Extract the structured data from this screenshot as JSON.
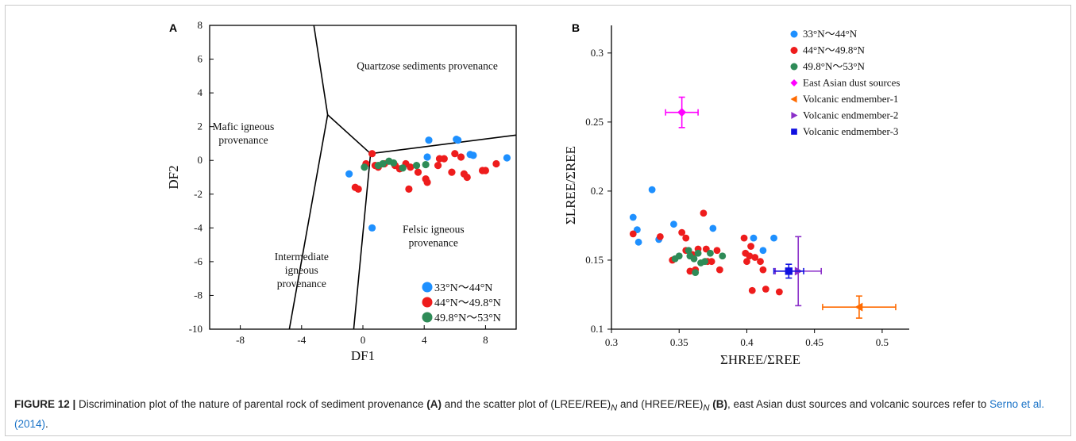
{
  "colors": {
    "blue": "#1e90ff",
    "red": "#ee1c1c",
    "green": "#2e8b57",
    "magenta": "#ff00ff",
    "orange": "#ff6a00",
    "purple": "#8b2fc9",
    "navy": "#1010e0"
  },
  "caption": {
    "label": "FIGURE 12 |",
    "part1": " Discrimination plot of the nature of parental rock of sediment provenance ",
    "a": "(A)",
    "part2": " and the scatter plot of (LREE/REE)",
    "sub1": "N",
    "part3": " and (HREE/REE)",
    "sub2": "N",
    "b": " (B)",
    "part4": ", east Asian dust sources and volcanic sources refer to ",
    "ref": "Serno et al. (2014)",
    "end": "."
  },
  "chart_data": [
    {
      "panel": "A",
      "type": "scatter",
      "xlabel": "DF1",
      "ylabel": "DF2",
      "xlim": [
        -10,
        10
      ],
      "ylim": [
        -10,
        8
      ],
      "xticks": [
        -8,
        -4,
        0,
        4,
        8
      ],
      "yticks": [
        -10,
        -8,
        -6,
        -4,
        -2,
        0,
        2,
        4,
        6,
        8
      ],
      "grid": false,
      "legend_position": "bottom-right",
      "regions": [
        {
          "name": "quartzose",
          "lines": [
            "Quartzose sediments provenance"
          ],
          "x": 4.2,
          "y": 5.4
        },
        {
          "name": "mafic",
          "lines": [
            "Mafic igneous",
            "provenance"
          ],
          "x": -7.8,
          "y": 1.8
        },
        {
          "name": "felsic",
          "lines": [
            "Felsic igneous",
            "provenance"
          ],
          "x": 4.6,
          "y": -4.3
        },
        {
          "name": "intermediate",
          "lines": [
            "Intermediate",
            "igneous",
            "provenance"
          ],
          "x": -4.0,
          "y": -5.9
        }
      ],
      "boundaries": [
        [
          [
            -3.2,
            8
          ],
          [
            -2.3,
            2.7
          ],
          [
            0.5,
            0.4
          ]
        ],
        [
          [
            -2.3,
            2.7
          ],
          [
            -4.8,
            -10
          ]
        ],
        [
          [
            0.5,
            0.4
          ],
          [
            -0.6,
            -10
          ]
        ],
        [
          [
            0.5,
            0.4
          ],
          [
            10,
            1.5
          ]
        ]
      ],
      "series": [
        {
          "name": "33°N～44°N",
          "color": "blue",
          "points": [
            [
              -0.9,
              -0.8
            ],
            [
              0.6,
              -4.0
            ],
            [
              4.2,
              0.2
            ],
            [
              4.3,
              1.2
            ],
            [
              6.1,
              1.25
            ],
            [
              6.2,
              1.2
            ],
            [
              7.0,
              0.35
            ],
            [
              7.2,
              0.3
            ],
            [
              9.4,
              0.15
            ]
          ]
        },
        {
          "name": "44°N～49.8°N",
          "color": "red",
          "points": [
            [
              -0.5,
              -1.6
            ],
            [
              -0.3,
              -1.7
            ],
            [
              0.2,
              -0.2
            ],
            [
              0.6,
              0.4
            ],
            [
              0.8,
              -0.3
            ],
            [
              1.0,
              -0.4
            ],
            [
              1.4,
              -0.2
            ],
            [
              2.1,
              -0.3
            ],
            [
              2.4,
              -0.5
            ],
            [
              2.8,
              -0.2
            ],
            [
              3.0,
              -1.7
            ],
            [
              3.1,
              -0.4
            ],
            [
              3.6,
              -0.7
            ],
            [
              4.1,
              -1.1
            ],
            [
              4.2,
              -1.3
            ],
            [
              4.9,
              -0.3
            ],
            [
              5.0,
              0.1
            ],
            [
              5.3,
              0.1
            ],
            [
              5.8,
              -0.7
            ],
            [
              6.0,
              0.4
            ],
            [
              6.4,
              0.2
            ],
            [
              6.6,
              -0.8
            ],
            [
              6.8,
              -1.0
            ],
            [
              7.8,
              -0.6
            ],
            [
              8.0,
              -0.6
            ],
            [
              8.7,
              -0.2
            ]
          ]
        },
        {
          "name": "49.8°N～53°N",
          "color": "green",
          "points": [
            [
              0.1,
              -0.4
            ],
            [
              1.0,
              -0.3
            ],
            [
              1.3,
              -0.2
            ],
            [
              1.7,
              -0.05
            ],
            [
              2.0,
              -0.15
            ],
            [
              2.6,
              -0.45
            ],
            [
              3.5,
              -0.3
            ],
            [
              4.1,
              -0.25
            ]
          ]
        }
      ]
    },
    {
      "panel": "B",
      "type": "scatter",
      "xlabel": "ΣHREE/ΣREE",
      "ylabel": "ΣLREE/ΣREE",
      "xlim": [
        0.3,
        0.52
      ],
      "ylim": [
        0.1,
        0.32
      ],
      "xticks": [
        0.3,
        0.35,
        0.4,
        0.45,
        0.5
      ],
      "yticks": [
        0.1,
        0.15,
        0.2,
        0.25,
        0.3
      ],
      "grid": false,
      "legend_position": "top-right",
      "series": [
        {
          "name": "33°N～44°N",
          "color": "blue",
          "marker": "circle",
          "points": [
            [
              0.316,
              0.181
            ],
            [
              0.319,
              0.172
            ],
            [
              0.32,
              0.163
            ],
            [
              0.33,
              0.201
            ],
            [
              0.335,
              0.165
            ],
            [
              0.346,
              0.176
            ],
            [
              0.375,
              0.173
            ],
            [
              0.405,
              0.166
            ],
            [
              0.412,
              0.157
            ],
            [
              0.42,
              0.166
            ]
          ]
        },
        {
          "name": "44°N～49.8°N",
          "color": "red",
          "marker": "circle",
          "points": [
            [
              0.316,
              0.169
            ],
            [
              0.336,
              0.167
            ],
            [
              0.345,
              0.15
            ],
            [
              0.352,
              0.17
            ],
            [
              0.355,
              0.166
            ],
            [
              0.355,
              0.157
            ],
            [
              0.358,
              0.142
            ],
            [
              0.36,
              0.154
            ],
            [
              0.362,
              0.143
            ],
            [
              0.364,
              0.158
            ],
            [
              0.368,
              0.184
            ],
            [
              0.37,
              0.158
            ],
            [
              0.371,
              0.149
            ],
            [
              0.374,
              0.149
            ],
            [
              0.378,
              0.157
            ],
            [
              0.38,
              0.143
            ],
            [
              0.398,
              0.166
            ],
            [
              0.399,
              0.155
            ],
            [
              0.4,
              0.149
            ],
            [
              0.402,
              0.153
            ],
            [
              0.403,
              0.16
            ],
            [
              0.404,
              0.128
            ],
            [
              0.406,
              0.152
            ],
            [
              0.41,
              0.149
            ],
            [
              0.412,
              0.143
            ],
            [
              0.414,
              0.129
            ],
            [
              0.424,
              0.127
            ]
          ]
        },
        {
          "name": "49.8°N～53°N",
          "color": "green",
          "marker": "circle",
          "points": [
            [
              0.347,
              0.151
            ],
            [
              0.35,
              0.153
            ],
            [
              0.357,
              0.157
            ],
            [
              0.358,
              0.153
            ],
            [
              0.361,
              0.151
            ],
            [
              0.362,
              0.141
            ],
            [
              0.364,
              0.155
            ],
            [
              0.366,
              0.148
            ],
            [
              0.369,
              0.149
            ],
            [
              0.373,
              0.155
            ],
            [
              0.382,
              0.153
            ]
          ]
        },
        {
          "name": "East Asian dust sources",
          "color": "magenta",
          "marker": "diamond",
          "points": [
            [
              0.352,
              0.257
            ]
          ],
          "xerr": 0.012,
          "yerr": 0.011
        },
        {
          "name": "Volcanic endmember-1",
          "color": "orange",
          "marker": "triangle-left",
          "points": [
            [
              0.483,
              0.116
            ]
          ],
          "xerr": 0.027,
          "yerr": 0.008
        },
        {
          "name": "Volcanic endmember-2",
          "color": "purple",
          "marker": "triangle-right",
          "points": [
            [
              0.438,
              0.142
            ]
          ],
          "xerr": 0.017,
          "yerr": 0.025
        },
        {
          "name": "Volcanic endmember-3",
          "color": "navy",
          "marker": "square",
          "points": [
            [
              0.431,
              0.142
            ]
          ],
          "xerr": 0.011,
          "yerr": 0.005
        }
      ]
    }
  ]
}
